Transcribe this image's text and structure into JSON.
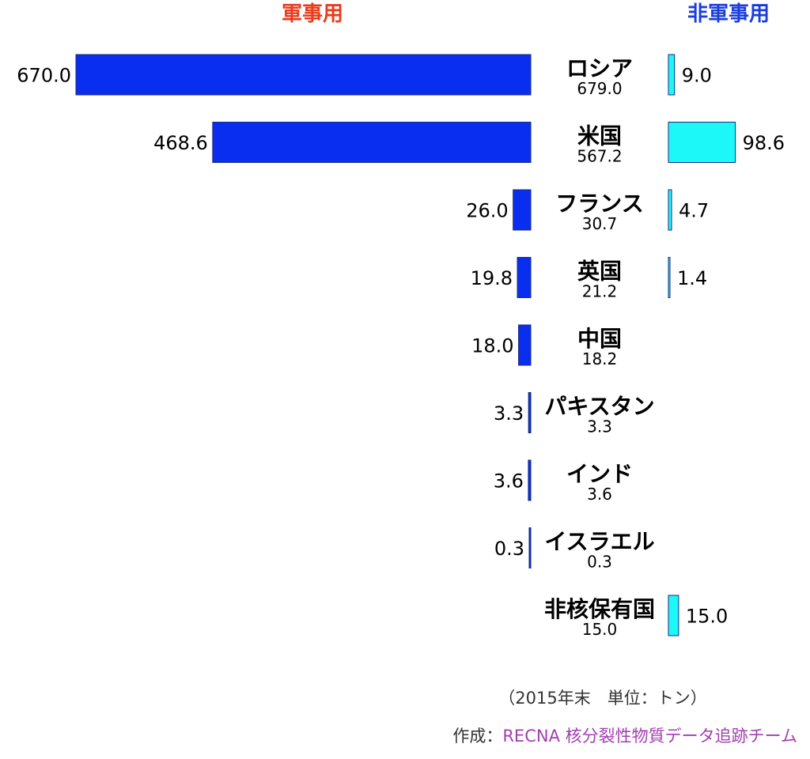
{
  "chart_data": {
    "type": "bar",
    "left_header": "軍事用",
    "right_header": "非軍事用",
    "colors": {
      "left_header": "#e83c1c",
      "right_header": "#1a3ddc",
      "military_bar": "#0a2ef0",
      "civil_bar": "#1cf8f8",
      "bar_stroke": "#1a2a80",
      "credit_label": "#333333",
      "credit_org": "#a23fb0"
    },
    "categories": [
      "ロシア",
      "米国",
      "フランス",
      "英国",
      "中国",
      "パキスタン",
      "インド",
      "イスラエル",
      "非核保有国"
    ],
    "totals": [
      "679.0",
      "567.2",
      "30.7",
      "21.2",
      "18.2",
      "3.3",
      "3.6",
      "0.3",
      "15.0"
    ],
    "series": [
      {
        "name": "軍事用",
        "values": [
          670.0,
          468.6,
          26.0,
          19.8,
          18.0,
          3.3,
          3.6,
          0.3,
          null
        ],
        "labels": [
          "670.0",
          "468.6",
          "26.0",
          "19.8",
          "18.0",
          "3.3",
          "3.6",
          "0.3",
          ""
        ]
      },
      {
        "name": "非軍事用",
        "values": [
          9.0,
          98.6,
          4.7,
          1.4,
          null,
          null,
          null,
          null,
          15.0
        ],
        "labels": [
          "9.0",
          "98.6",
          "4.7",
          "1.4",
          "",
          "",
          "",
          "",
          "15.0"
        ]
      }
    ]
  },
  "footnote": "（2015年末　単位：トン）",
  "credit": {
    "label": "作成：",
    "org": "RECNA 核分裂性物質データ追跡チーム"
  }
}
